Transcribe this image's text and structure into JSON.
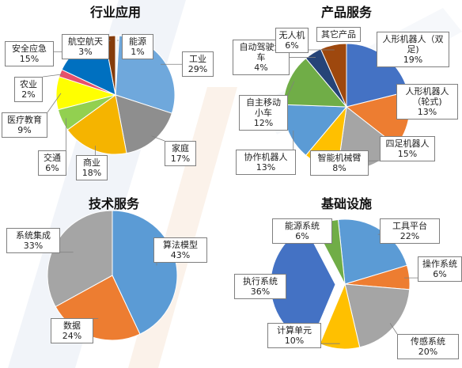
{
  "chart_data": [
    {
      "type": "pie",
      "title": "行业应用",
      "slices": [
        {
          "label": "能源",
          "value": 1,
          "value_label": "1%",
          "color": "#f3f3f3"
        },
        {
          "label": "工业",
          "value": 29,
          "value_label": "29%",
          "color": "#6fa8dc"
        },
        {
          "label": "家庭",
          "value": 17,
          "value_label": "17%",
          "color": "#8e8e8e"
        },
        {
          "label": "商业",
          "value": 18,
          "value_label": "18%",
          "color": "#f5b400"
        },
        {
          "label": "交通",
          "value": 6,
          "value_label": "6%",
          "color": "#92d050"
        },
        {
          "label": "医疗教育",
          "value": 9,
          "value_label": "9%",
          "color": "#ffff00"
        },
        {
          "label": "农业",
          "value": 2,
          "value_label": "2%",
          "color": "#e8506a"
        },
        {
          "label": "安全应急",
          "value": 15,
          "value_label": "15%",
          "color": "#0070c0"
        },
        {
          "label": "航空航天",
          "value": 3,
          "value_label": "3%",
          "color": "#843c0c"
        }
      ]
    },
    {
      "type": "pie",
      "title": "产品服务",
      "slices": [
        {
          "label": "其它产品",
          "value": 0,
          "value_label": "",
          "color": "#404040"
        },
        {
          "label": "人形机器人（双足)",
          "value": 19,
          "value_label": "19%",
          "color": "#4472c4"
        },
        {
          "label": "人形机器人（轮式)",
          "value": 13,
          "value_label": "13%",
          "color": "#ed7d31"
        },
        {
          "label": "四足机器人",
          "value": 15,
          "value_label": "15%",
          "color": "#a5a5a5"
        },
        {
          "label": "智能机械臂",
          "value": 8,
          "value_label": "8%",
          "color": "#ffc000"
        },
        {
          "label": "协作机器人",
          "value": 13,
          "value_label": "13%",
          "color": "#5b9bd5"
        },
        {
          "label": "自主移动小车",
          "value": 12,
          "value_label": "12%",
          "color": "#70ad47"
        },
        {
          "label": "自动驾驶汽车",
          "value": 4,
          "value_label": "4%",
          "color": "#264478"
        },
        {
          "label": "无人机",
          "value": 6,
          "value_label": "6%",
          "color": "#9e480e"
        }
      ]
    },
    {
      "type": "pie",
      "title": "技术服务",
      "slices": [
        {
          "label": "算法模型",
          "value": 43,
          "value_label": "43%",
          "color": "#5b9bd5"
        },
        {
          "label": "数据",
          "value": 24,
          "value_label": "24%",
          "color": "#ed7d31"
        },
        {
          "label": "系统集成",
          "value": 33,
          "value_label": "33%",
          "color": "#a5a5a5"
        }
      ]
    },
    {
      "type": "pie",
      "title": "基础设施",
      "slices": [
        {
          "label": "工具平台",
          "value": 22,
          "value_label": "22%",
          "color": "#5b9bd5"
        },
        {
          "label": "操作系统",
          "value": 6,
          "value_label": "6%",
          "color": "#ed7d31"
        },
        {
          "label": "传感系统",
          "value": 20,
          "value_label": "20%",
          "color": "#a5a5a5"
        },
        {
          "label": "计算单元",
          "value": 10,
          "value_label": "10%",
          "color": "#ffc000"
        },
        {
          "label": "执行系统",
          "value": 36,
          "value_label": "36%",
          "color": "#4472c4"
        },
        {
          "label": "能源系统",
          "value": 6,
          "value_label": "6%",
          "color": "#70ad47"
        }
      ]
    }
  ]
}
